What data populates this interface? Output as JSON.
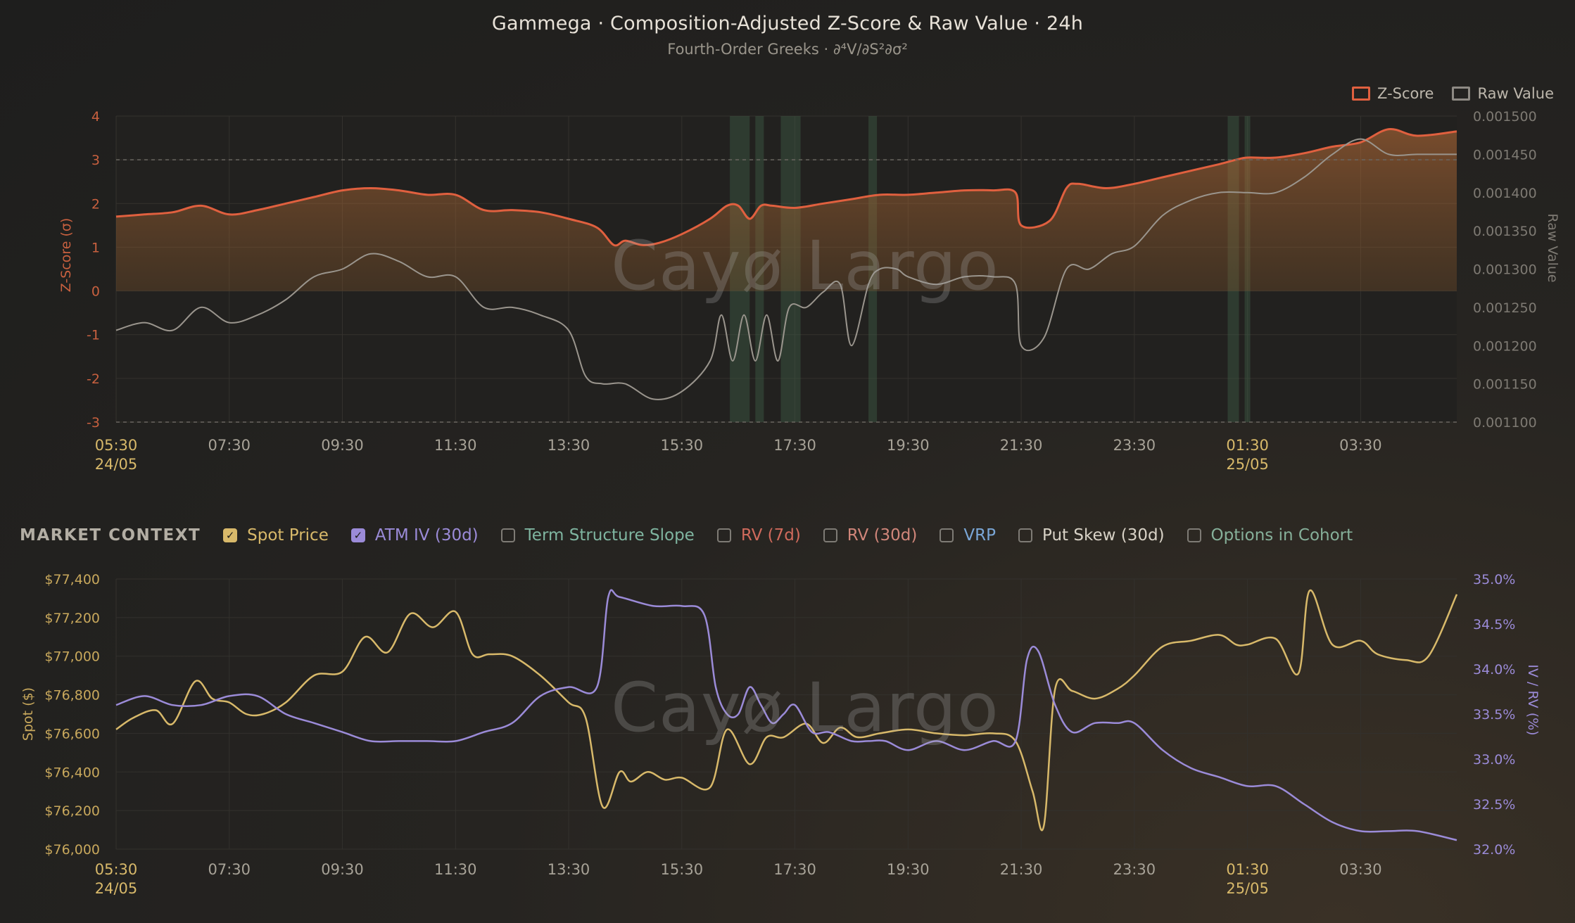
{
  "header": {
    "title": "Gammega · Composition-Adjusted Z-Score & Raw Value · 24h",
    "subtitle": "Fourth-Order Greeks · ∂⁴V/∂S²∂σ²"
  },
  "watermark": "Cayø Largo",
  "legend": [
    {
      "label": "Z-Score",
      "color": "#e0603f"
    },
    {
      "label": "Raw Value",
      "color": "#8e8a84"
    }
  ],
  "market_context": {
    "title": "MARKET CONTEXT",
    "items": [
      {
        "label": "Spot Price",
        "checked": true,
        "color": "#d8b96a"
      },
      {
        "label": "ATM IV (30d)",
        "checked": true,
        "color": "#9b8bd8"
      },
      {
        "label": "Term Structure Slope",
        "checked": false,
        "color": "#7fb5a0"
      },
      {
        "label": "RV (7d)",
        "checked": false,
        "color": "#d06a5c"
      },
      {
        "label": "RV (30d)",
        "checked": false,
        "color": "#d0867a"
      },
      {
        "label": "VRP",
        "checked": false,
        "color": "#7aa6d6"
      },
      {
        "label": "Put Skew (30d)",
        "checked": false,
        "color": "#d8d2c6"
      },
      {
        "label": "Options in Cohort",
        "checked": false,
        "color": "#86b09a"
      }
    ]
  },
  "chart_data": [
    {
      "type": "area",
      "title": "Gammega · Composition-Adjusted Z-Score & Raw Value · 24h",
      "ylabel": "Z-Score (σ)",
      "y2label": "Raw Value",
      "ylim": [
        -3,
        4
      ],
      "y2lim": [
        0.0011,
        0.0015
      ],
      "yticks": [
        "4",
        "3",
        "2",
        "1",
        "0",
        "-1",
        "-2",
        "-3"
      ],
      "y2ticks": [
        "0.001500",
        "0.001450",
        "0.001400",
        "0.001350",
        "0.001300",
        "0.001250",
        "0.001200",
        "0.001150",
        "0.001100"
      ],
      "xticks": [
        {
          "h": 0,
          "label": "05:30",
          "sub": "24/05"
        },
        {
          "h": 2,
          "label": "07:30"
        },
        {
          "h": 4,
          "label": "09:30"
        },
        {
          "h": 6,
          "label": "11:30"
        },
        {
          "h": 8,
          "label": "13:30"
        },
        {
          "h": 10,
          "label": "15:30"
        },
        {
          "h": 12,
          "label": "17:30"
        },
        {
          "h": 14,
          "label": "19:30"
        },
        {
          "h": 16,
          "label": "21:30"
        },
        {
          "h": 18,
          "label": "23:30"
        },
        {
          "h": 20,
          "label": "01:30",
          "sub": "25/05"
        },
        {
          "h": 22,
          "label": "03:30"
        }
      ],
      "threshold_lines": [
        3,
        -3
      ],
      "highlight_bands_hours": [
        [
          10.85,
          11.2
        ],
        [
          11.3,
          11.45
        ],
        [
          11.75,
          12.1
        ],
        [
          13.3,
          13.45
        ],
        [
          19.65,
          19.85
        ],
        [
          19.95,
          20.05
        ]
      ],
      "grid": true,
      "legend_position": "top-right",
      "series": [
        {
          "name": "Z-Score",
          "x_hours": [
            0,
            0.5,
            1,
            1.5,
            2,
            2.5,
            3,
            3.5,
            4,
            4.5,
            5,
            5.5,
            6,
            6.5,
            7,
            7.5,
            8,
            8.5,
            8.8,
            9,
            9.3,
            9.6,
            10,
            10.5,
            10.8,
            11,
            11.2,
            11.4,
            11.6,
            12,
            12.5,
            13,
            13.5,
            14,
            14.5,
            15,
            15.5,
            15.9,
            16,
            16.5,
            16.8,
            17,
            17.5,
            18,
            18.5,
            19,
            19.5,
            19.8,
            20,
            20.5,
            21,
            21.5,
            22,
            22.5,
            23,
            23.7
          ],
          "values": [
            1.7,
            1.75,
            1.8,
            1.95,
            1.75,
            1.85,
            2.0,
            2.15,
            2.3,
            2.35,
            2.3,
            2.2,
            2.2,
            1.85,
            1.85,
            1.8,
            1.65,
            1.45,
            1.05,
            1.15,
            1.05,
            1.1,
            1.3,
            1.65,
            1.95,
            1.95,
            1.65,
            1.95,
            1.95,
            1.9,
            2.0,
            2.1,
            2.2,
            2.2,
            2.25,
            2.3,
            2.3,
            2.25,
            1.5,
            1.6,
            2.35,
            2.45,
            2.35,
            2.45,
            2.6,
            2.75,
            2.9,
            3.0,
            3.05,
            3.05,
            3.15,
            3.3,
            3.4,
            3.7,
            3.55,
            3.65
          ]
        },
        {
          "name": "Raw Value",
          "x_hours": [
            0,
            0.5,
            1,
            1.5,
            2,
            2.5,
            3,
            3.5,
            4,
            4.5,
            5,
            5.5,
            6,
            6.5,
            7,
            7.5,
            8,
            8.3,
            8.6,
            9,
            9.5,
            10,
            10.5,
            10.7,
            10.9,
            11.1,
            11.3,
            11.5,
            11.7,
            11.9,
            12.2,
            12.5,
            12.8,
            13,
            13.3,
            13.5,
            13.8,
            14,
            14.5,
            15,
            15.5,
            15.9,
            16,
            16.4,
            16.8,
            17.2,
            17.6,
            18,
            18.5,
            19,
            19.5,
            20,
            20.5,
            21,
            21.5,
            22,
            22.5,
            23,
            23.7
          ],
          "values": [
            0.00122,
            0.00123,
            0.00122,
            0.00125,
            0.00123,
            0.00124,
            0.00126,
            0.00129,
            0.0013,
            0.00132,
            0.00131,
            0.00129,
            0.00129,
            0.00125,
            0.00125,
            0.00124,
            0.00122,
            0.00116,
            0.00115,
            0.00115,
            0.00113,
            0.00114,
            0.00118,
            0.00124,
            0.00118,
            0.00124,
            0.00118,
            0.00124,
            0.00118,
            0.00125,
            0.00125,
            0.00127,
            0.00128,
            0.0012,
            0.00128,
            0.0013,
            0.0013,
            0.00129,
            0.00128,
            0.00129,
            0.00129,
            0.00128,
            0.0012,
            0.00121,
            0.0013,
            0.0013,
            0.00132,
            0.00133,
            0.00137,
            0.00139,
            0.0014,
            0.0014,
            0.0014,
            0.00142,
            0.00145,
            0.00147,
            0.00145,
            0.00145,
            0.00145
          ]
        }
      ]
    },
    {
      "type": "line",
      "title": "MARKET CONTEXT",
      "ylabel": "Spot ($)",
      "y2label": "IV / RV (%)",
      "ylim": [
        76000,
        77400
      ],
      "y2lim": [
        32.0,
        35.0
      ],
      "yticks": [
        "$77,400",
        "$77,200",
        "$77,000",
        "$76,800",
        "$76,600",
        "$76,400",
        "$76,200",
        "$76,000"
      ],
      "y2ticks": [
        "35.0%",
        "34.5%",
        "34.0%",
        "33.5%",
        "33.0%",
        "32.5%",
        "32.0%"
      ],
      "xticks": [
        {
          "h": 0,
          "label": "05:30",
          "sub": "24/05"
        },
        {
          "h": 2,
          "label": "07:30"
        },
        {
          "h": 4,
          "label": "09:30"
        },
        {
          "h": 6,
          "label": "11:30"
        },
        {
          "h": 8,
          "label": "13:30"
        },
        {
          "h": 10,
          "label": "15:30"
        },
        {
          "h": 12,
          "label": "17:30"
        },
        {
          "h": 14,
          "label": "19:30"
        },
        {
          "h": 16,
          "label": "21:30"
        },
        {
          "h": 18,
          "label": "23:30"
        },
        {
          "h": 20,
          "label": "01:30",
          "sub": "25/05"
        },
        {
          "h": 22,
          "label": "03:30"
        }
      ],
      "grid": true,
      "series": [
        {
          "name": "Spot Price",
          "x_hours": [
            0,
            0.3,
            0.7,
            1,
            1.4,
            1.7,
            2,
            2.3,
            2.6,
            3,
            3.5,
            4,
            4.4,
            4.8,
            5.2,
            5.6,
            6,
            6.3,
            6.6,
            7,
            7.5,
            8,
            8.3,
            8.6,
            8.9,
            9.1,
            9.4,
            9.7,
            10,
            10.5,
            10.8,
            11.2,
            11.5,
            11.8,
            12.2,
            12.5,
            12.8,
            13.1,
            13.5,
            14,
            14.5,
            15,
            15.5,
            15.9,
            16.2,
            16.4,
            16.6,
            16.9,
            17.3,
            17.7,
            18,
            18.5,
            19,
            19.5,
            19.8,
            20,
            20.5,
            20.9,
            21.1,
            21.5,
            22,
            22.3,
            22.8,
            23.2,
            23.7
          ],
          "values": [
            76620,
            76680,
            76720,
            76650,
            76870,
            76780,
            76760,
            76700,
            76700,
            76760,
            76900,
            76920,
            77100,
            77020,
            77220,
            77150,
            77230,
            77010,
            77010,
            77000,
            76900,
            76760,
            76680,
            76220,
            76400,
            76350,
            76400,
            76360,
            76370,
            76320,
            76620,
            76440,
            76580,
            76580,
            76650,
            76550,
            76630,
            76580,
            76600,
            76620,
            76600,
            76590,
            76600,
            76560,
            76300,
            76120,
            76830,
            76820,
            76780,
            76830,
            76900,
            77050,
            77080,
            77110,
            77060,
            77060,
            77090,
            76910,
            77340,
            77060,
            77080,
            77010,
            76980,
            77000,
            77320
          ]
        },
        {
          "name": "ATM IV (30d)",
          "x_hours": [
            0,
            0.5,
            1,
            1.5,
            2,
            2.5,
            3,
            3.5,
            4,
            4.5,
            5,
            5.5,
            6,
            6.5,
            7,
            7.5,
            8,
            8.5,
            8.7,
            8.9,
            9.5,
            10,
            10.4,
            10.6,
            10.8,
            11,
            11.2,
            11.4,
            11.6,
            11.8,
            12,
            12.3,
            12.6,
            13,
            13.3,
            13.6,
            14,
            14.5,
            15,
            15.5,
            15.9,
            16.1,
            16.3,
            16.6,
            16.9,
            17.3,
            17.7,
            18,
            18.5,
            19,
            19.5,
            20,
            20.5,
            21,
            21.5,
            22,
            22.5,
            23,
            23.7
          ],
          "values": [
            33.6,
            33.7,
            33.6,
            33.6,
            33.7,
            33.7,
            33.5,
            33.4,
            33.3,
            33.2,
            33.2,
            33.2,
            33.2,
            33.3,
            33.4,
            33.7,
            33.8,
            33.8,
            34.8,
            34.8,
            34.7,
            34.7,
            34.6,
            33.8,
            33.5,
            33.5,
            33.8,
            33.6,
            33.4,
            33.5,
            33.6,
            33.3,
            33.3,
            33.2,
            33.2,
            33.2,
            33.1,
            33.2,
            33.1,
            33.2,
            33.2,
            34.1,
            34.2,
            33.6,
            33.3,
            33.4,
            33.4,
            33.4,
            33.1,
            32.9,
            32.8,
            32.7,
            32.7,
            32.5,
            32.3,
            32.2,
            32.2,
            32.2,
            32.1
          ]
        }
      ]
    }
  ]
}
